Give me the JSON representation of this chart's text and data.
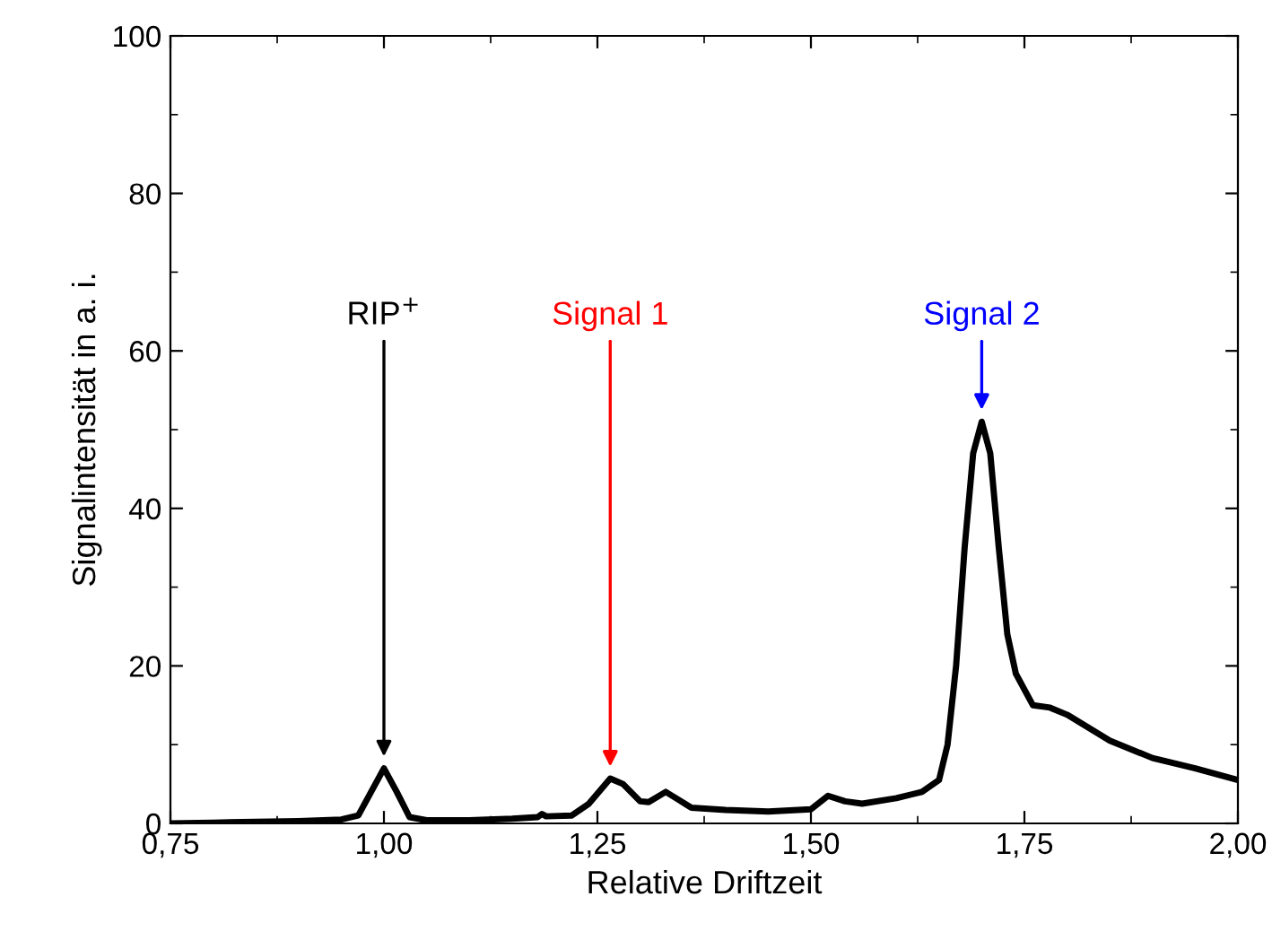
{
  "chart_data": {
    "type": "line",
    "xlabel": "Relative Driftzeit",
    "ylabel": "Signalintensität in a. i.",
    "xlim": [
      0.75,
      2.0
    ],
    "ylim": [
      0,
      100
    ],
    "xticks": [
      {
        "value": 0.75,
        "label": "0,75"
      },
      {
        "value": 1.0,
        "label": "1,00"
      },
      {
        "value": 1.25,
        "label": "1,25"
      },
      {
        "value": 1.5,
        "label": "1,50"
      },
      {
        "value": 1.75,
        "label": "1,75"
      },
      {
        "value": 2.0,
        "label": "2,00"
      }
    ],
    "yticks": [
      0,
      20,
      40,
      60,
      80,
      100
    ],
    "grid": false,
    "legend": false,
    "marker": "none",
    "line_style": "solid",
    "annotations": [
      {
        "text": "RIP$^{+}$",
        "x": 1.0,
        "y": 7
      },
      {
        "text": "Signal 1",
        "x": 1.265,
        "y": 5.7
      },
      {
        "text": "Signal 2",
        "x": 1.7,
        "y": 51
      }
    ],
    "series": [
      {
        "color": "#000000",
        "x": [
          0.75,
          0.8,
          0.85,
          0.9,
          0.95,
          0.97,
          0.985,
          1.0,
          1.015,
          1.03,
          1.05,
          1.1,
          1.15,
          1.18,
          1.185,
          1.19,
          1.22,
          1.24,
          1.265,
          1.28,
          1.3,
          1.31,
          1.33,
          1.345,
          1.36,
          1.4,
          1.45,
          1.5,
          1.52,
          1.54,
          1.56,
          1.6,
          1.63,
          1.65,
          1.66,
          1.67,
          1.68,
          1.69,
          1.7,
          1.71,
          1.72,
          1.73,
          1.74,
          1.76,
          1.78,
          1.8,
          1.85,
          1.9,
          1.95,
          2.0
        ],
        "values": [
          0,
          0.1,
          0.2,
          0.3,
          0.5,
          1,
          4,
          7,
          4,
          0.8,
          0.4,
          0.4,
          0.6,
          0.8,
          1.2,
          0.9,
          1.0,
          2.5,
          5.7,
          5.0,
          2.8,
          2.7,
          4.0,
          3.0,
          2.0,
          1.7,
          1.5,
          1.8,
          3.5,
          2.8,
          2.5,
          3.2,
          4.0,
          5.5,
          10,
          20,
          35,
          47,
          51,
          47,
          35,
          24,
          19,
          15,
          14.7,
          13.8,
          10.5,
          8.3,
          7,
          5.5
        ]
      }
    ]
  }
}
